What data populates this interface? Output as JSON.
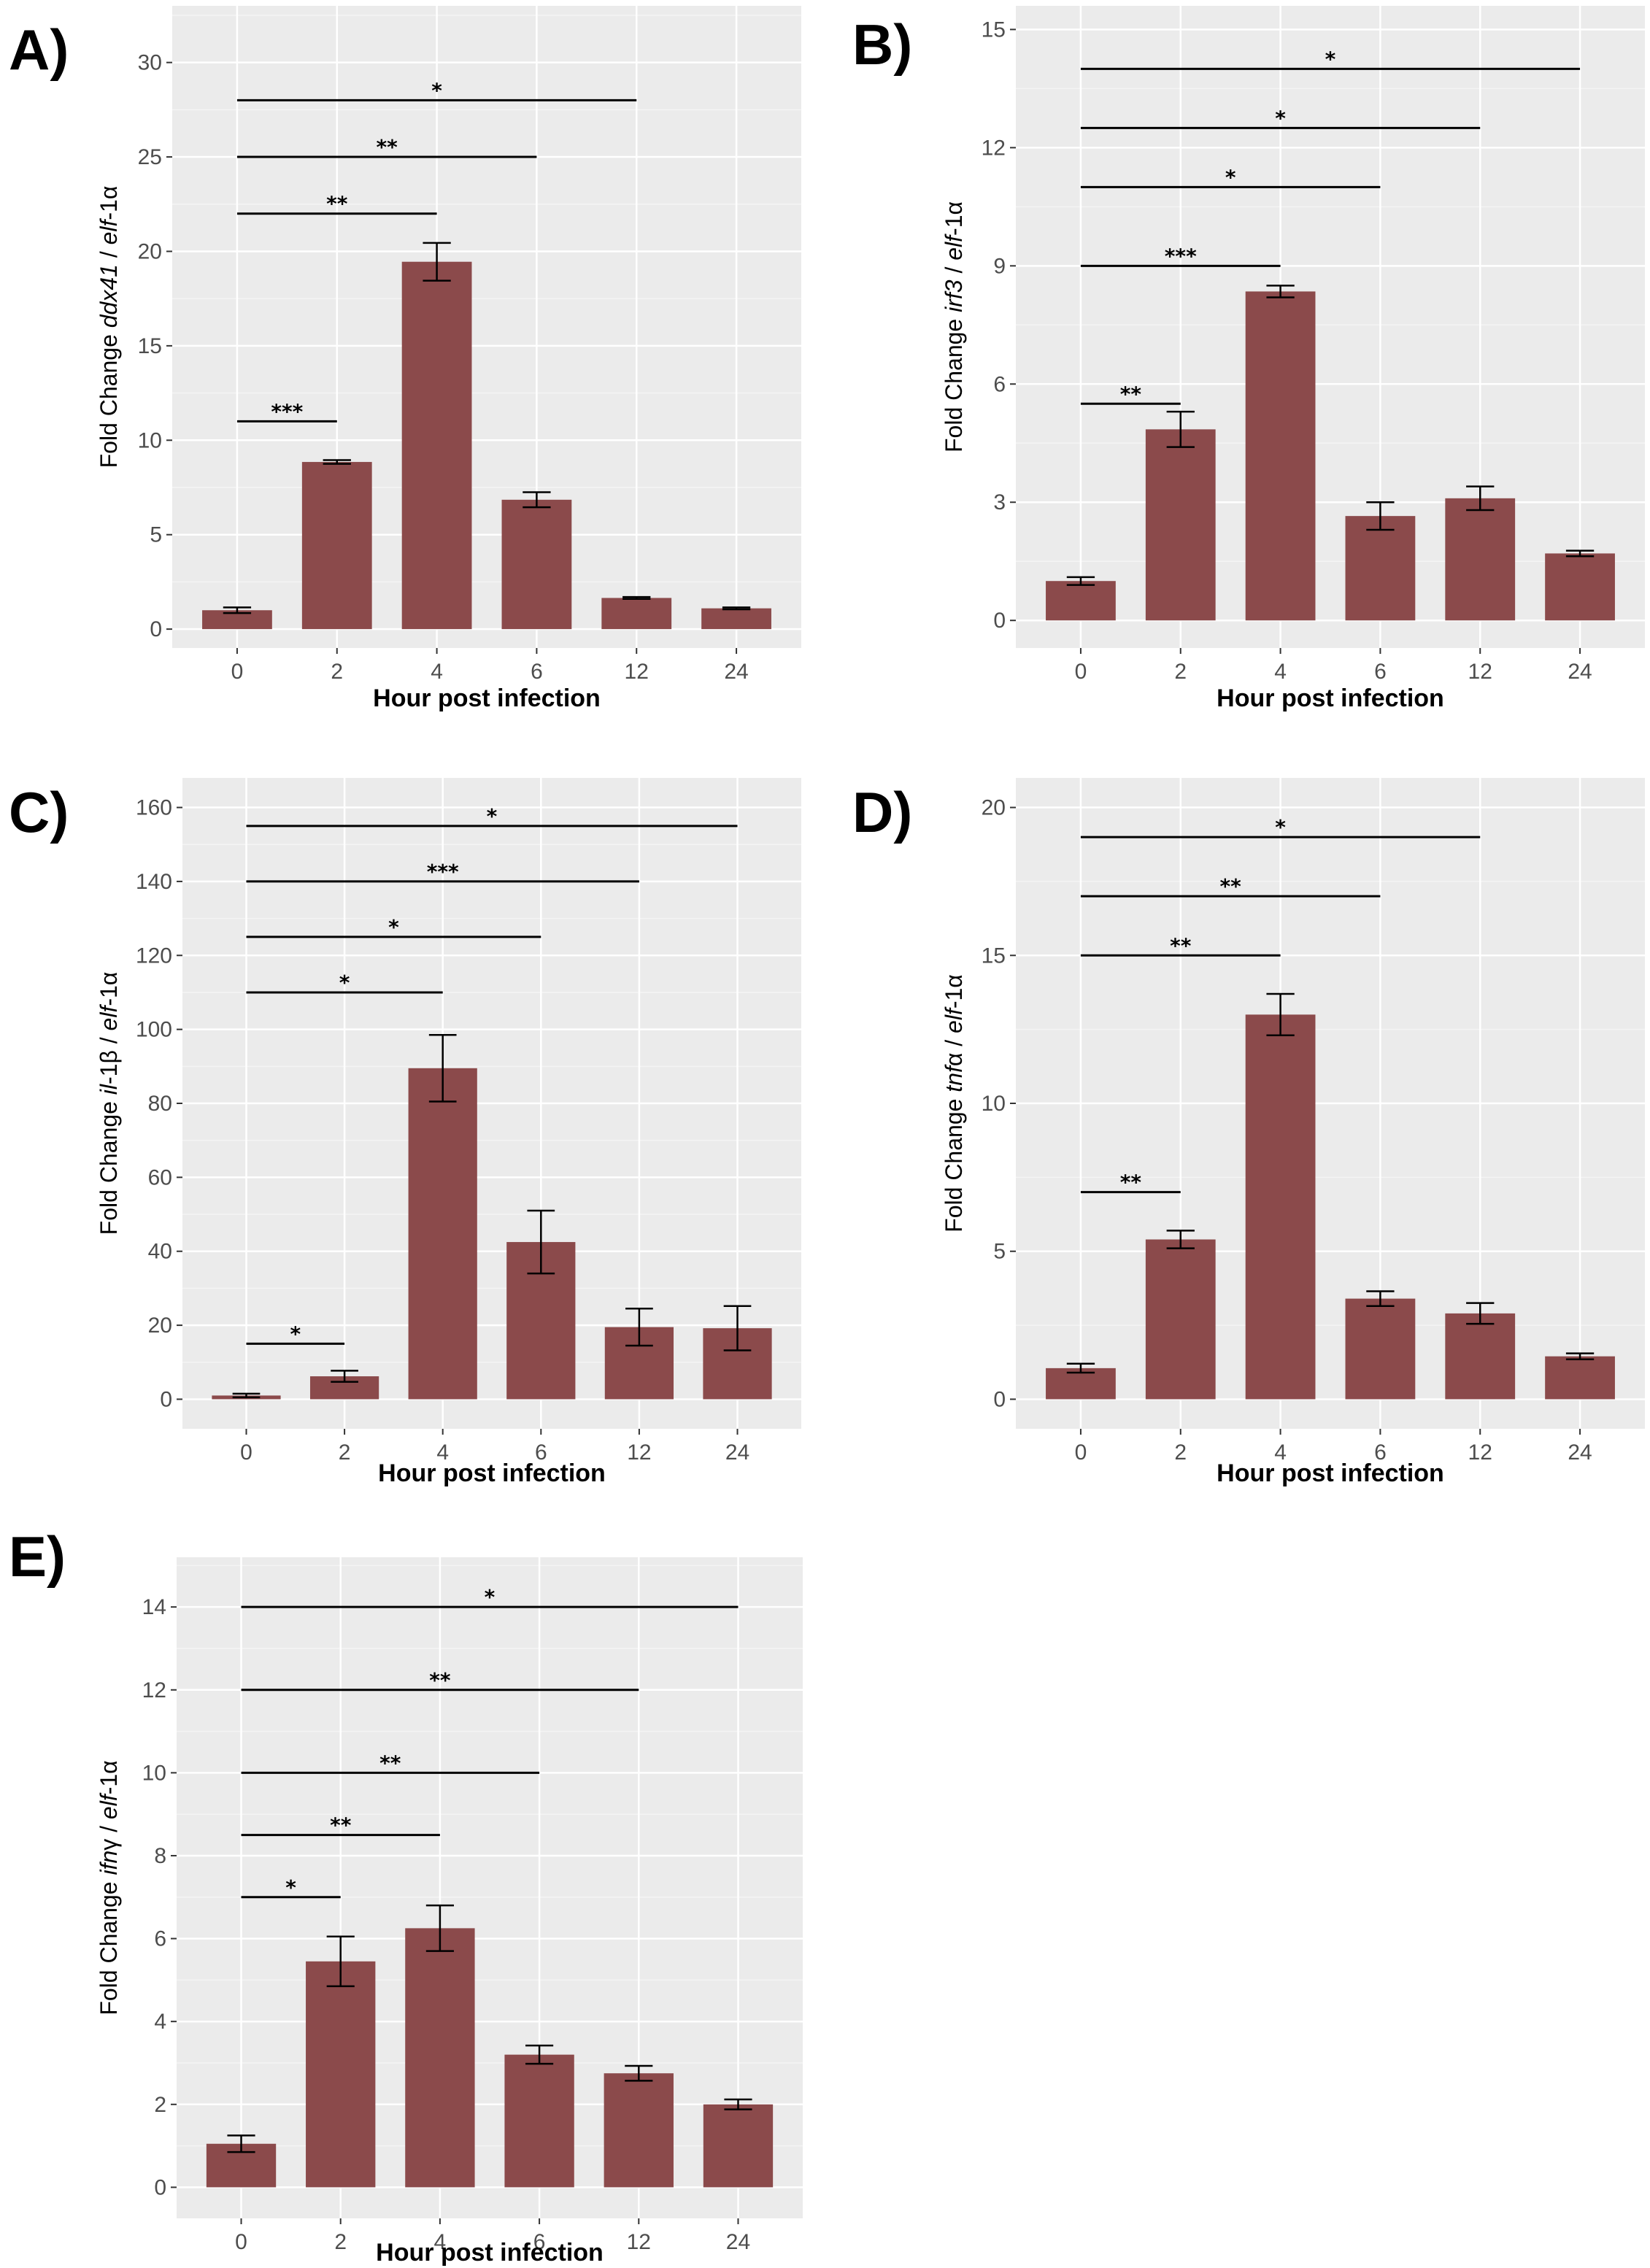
{
  "colors": {
    "bar": "#8b4a4b",
    "panel_bg": "#ebebeb",
    "grid_major": "#ffffff",
    "grid_minor": "#f4f4f4",
    "error_bar": "#000000",
    "sig_line": "#000000"
  },
  "chart_data": [
    {
      "panel": "A)",
      "type": "bar",
      "title": "",
      "xlabel": "Hour post infection",
      "ylabel": {
        "prefix": "Fold Change ",
        "gene": "ddx41",
        "sep": " / ",
        "ref": "elf",
        "suffix": "-1α"
      },
      "categories": [
        "0",
        "2",
        "4",
        "6",
        "12",
        "24"
      ],
      "values": [
        1.0,
        8.85,
        19.45,
        6.85,
        1.65,
        1.1
      ],
      "errors": [
        0.15,
        0.1,
        1.0,
        0.4,
        0.05,
        0.05
      ],
      "ylim": [
        -1.0,
        33.0
      ],
      "yticks": [
        0,
        5,
        10,
        15,
        20,
        25,
        30
      ],
      "tick_labels": [
        "0",
        "5",
        "10",
        "15",
        "20",
        "25",
        "30"
      ],
      "significance": [
        {
          "from": "0",
          "to": "2",
          "y": 11,
          "label": "***"
        },
        {
          "from": "0",
          "to": "4",
          "y": 22,
          "label": "**"
        },
        {
          "from": "0",
          "to": "6",
          "y": 25,
          "label": "**"
        },
        {
          "from": "0",
          "to": "12",
          "y": 28,
          "label": "*"
        }
      ]
    },
    {
      "panel": "B)",
      "type": "bar",
      "title": "",
      "xlabel": "Hour post infection",
      "ylabel": {
        "prefix": "Fold Change ",
        "gene": "irf3",
        "sep": " / ",
        "ref": "elf",
        "suffix": "-1α"
      },
      "categories": [
        "0",
        "2",
        "4",
        "6",
        "12",
        "24"
      ],
      "values": [
        1.0,
        4.85,
        8.35,
        2.65,
        3.1,
        1.7
      ],
      "errors": [
        0.1,
        0.45,
        0.15,
        0.35,
        0.3,
        0.07
      ],
      "ylim": [
        -0.7,
        15.6
      ],
      "yticks": [
        0,
        3,
        6,
        9,
        12,
        15
      ],
      "tick_labels": [
        "0",
        "3",
        "6",
        "9",
        "12",
        "15"
      ],
      "significance": [
        {
          "from": "0",
          "to": "2",
          "y": 5.5,
          "label": "**"
        },
        {
          "from": "0",
          "to": "4",
          "y": 9,
          "label": "***"
        },
        {
          "from": "0",
          "to": "6",
          "y": 11,
          "label": "*"
        },
        {
          "from": "0",
          "to": "12",
          "y": 12.5,
          "label": "*"
        },
        {
          "from": "0",
          "to": "24",
          "y": 14,
          "label": "*"
        }
      ]
    },
    {
      "panel": "C)",
      "type": "bar",
      "title": "",
      "xlabel": "Hour post infection",
      "ylabel": {
        "prefix": "Fold Change ",
        "gene": "il",
        "sep": "-1β / ",
        "ref": "elf",
        "suffix": "-1α"
      },
      "categories": [
        "0",
        "2",
        "4",
        "6",
        "12",
        "24"
      ],
      "values": [
        1.0,
        6.2,
        89.5,
        42.5,
        19.5,
        19.2
      ],
      "errors": [
        0.5,
        1.5,
        9.0,
        8.5,
        5.0,
        6.0
      ],
      "ylim": [
        -8.0,
        168.0
      ],
      "yticks": [
        0,
        20,
        40,
        60,
        80,
        100,
        120,
        140,
        160
      ],
      "tick_labels": [
        "0",
        "20",
        "40",
        "60",
        "80",
        "100",
        "120",
        "140",
        "160"
      ],
      "significance": [
        {
          "from": "0",
          "to": "2",
          "y": 15,
          "label": "*"
        },
        {
          "from": "0",
          "to": "4",
          "y": 110,
          "label": "*"
        },
        {
          "from": "0",
          "to": "6",
          "y": 125,
          "label": "*"
        },
        {
          "from": "0",
          "to": "12",
          "y": 140,
          "label": "***"
        },
        {
          "from": "0",
          "to": "24",
          "y": 155,
          "label": "*"
        }
      ]
    },
    {
      "panel": "D)",
      "type": "bar",
      "title": "",
      "xlabel": "Hour post infection",
      "ylabel": {
        "prefix": "Fold Change ",
        "gene": "tnf",
        "sep": "α / ",
        "ref": "elf",
        "suffix": "-1α"
      },
      "categories": [
        "0",
        "2",
        "4",
        "6",
        "12",
        "24"
      ],
      "values": [
        1.05,
        5.4,
        13.0,
        3.4,
        2.9,
        1.45
      ],
      "errors": [
        0.15,
        0.3,
        0.7,
        0.25,
        0.35,
        0.1
      ],
      "ylim": [
        -1.0,
        21.0
      ],
      "yticks": [
        0,
        5,
        10,
        15,
        20
      ],
      "tick_labels": [
        "0",
        "5",
        "10",
        "15",
        "20"
      ],
      "significance": [
        {
          "from": "0",
          "to": "2",
          "y": 7,
          "label": "**"
        },
        {
          "from": "0",
          "to": "4",
          "y": 15,
          "label": "**"
        },
        {
          "from": "0",
          "to": "6",
          "y": 17,
          "label": "**"
        },
        {
          "from": "0",
          "to": "12",
          "y": 19,
          "label": "*"
        }
      ]
    },
    {
      "panel": "E)",
      "type": "bar",
      "title": "",
      "xlabel": "Hour post infection",
      "ylabel": {
        "prefix": "Fold Change ",
        "gene": "ifn",
        "sep": "γ / ",
        "ref": "elf",
        "suffix": "-1α"
      },
      "categories": [
        "0",
        "2",
        "4",
        "6",
        "12",
        "24"
      ],
      "values": [
        1.05,
        5.45,
        6.25,
        3.2,
        2.75,
        2.0
      ],
      "errors": [
        0.2,
        0.6,
        0.55,
        0.22,
        0.18,
        0.12
      ],
      "ylim": [
        -0.75,
        15.2
      ],
      "yticks": [
        0,
        2,
        4,
        6,
        8,
        10,
        12,
        14
      ],
      "tick_labels": [
        "0",
        "2",
        "4",
        "6",
        "8",
        "10",
        "12",
        "14"
      ],
      "significance": [
        {
          "from": "0",
          "to": "2",
          "y": 7,
          "label": "*"
        },
        {
          "from": "0",
          "to": "4",
          "y": 8.5,
          "label": "**"
        },
        {
          "from": "0",
          "to": "6",
          "y": 10,
          "label": "**"
        },
        {
          "from": "0",
          "to": "12",
          "y": 12,
          "label": "**"
        },
        {
          "from": "0",
          "to": "24",
          "y": 14,
          "label": "*"
        }
      ]
    }
  ]
}
